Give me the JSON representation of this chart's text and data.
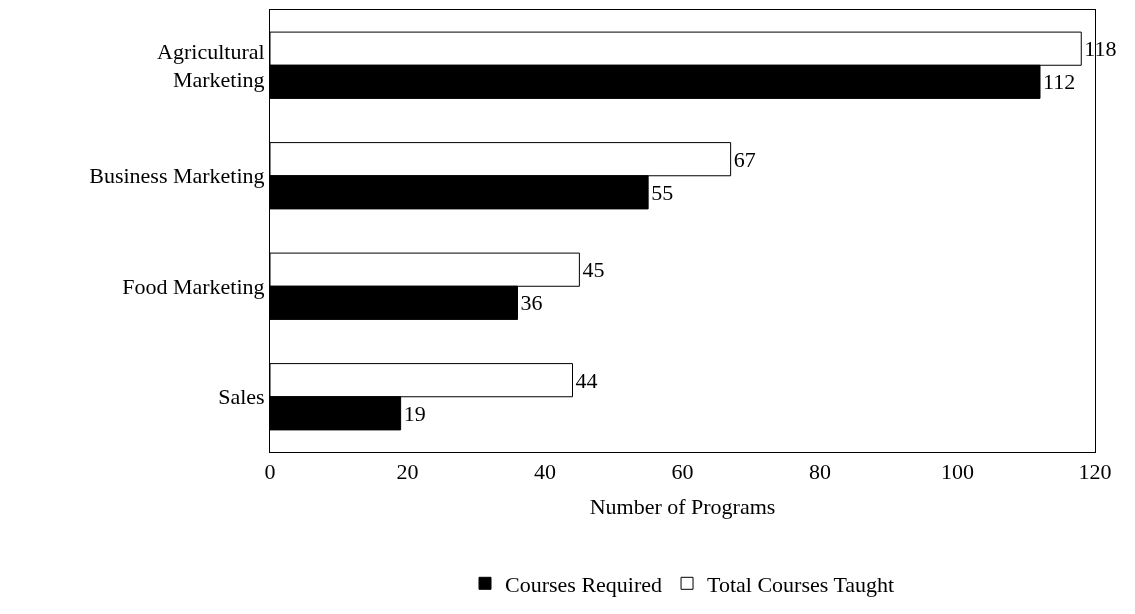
{
  "chart_data": {
    "type": "bar",
    "orientation": "horizontal",
    "xlabel": "Number of Programs",
    "categories": [
      "Agricultural Marketing",
      "Business Marketing",
      "Food Marketing",
      "Sales"
    ],
    "series": [
      {
        "name": "Courses Required",
        "color": "#000000",
        "values": [
          112,
          55,
          36,
          19
        ]
      },
      {
        "name": "Total Courses Taught",
        "color": "#ffffff",
        "values": [
          118,
          67,
          45,
          44
        ]
      }
    ],
    "xlim": [
      0,
      120
    ],
    "xticks": [
      0,
      20,
      40,
      60,
      80,
      100,
      120
    ],
    "data_labels": true,
    "legend": "bottom"
  }
}
